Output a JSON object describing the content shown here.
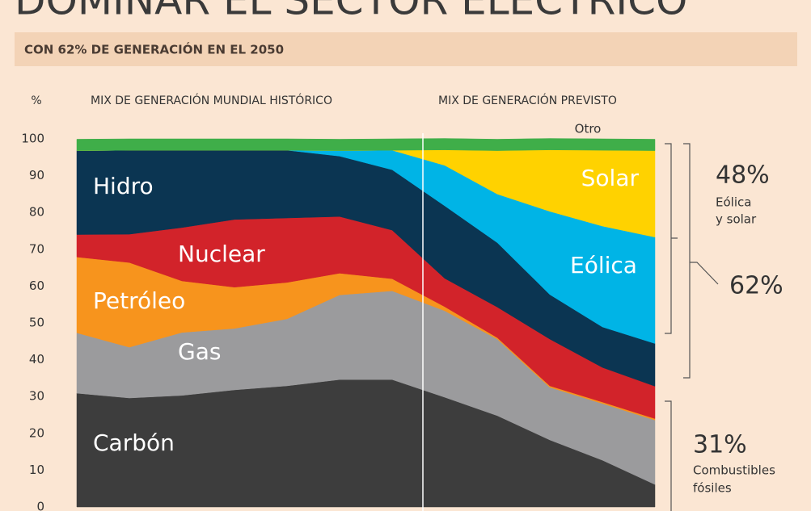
{
  "chart_data": {
    "type": "stacked_area",
    "title": "DOMINAR EL SECTOR ELÉCTRICO",
    "subtitle": "CON 62% DE GENERACIÓN EN EL 2050",
    "y_label": "%",
    "section_labels": [
      "MIX DE GENERACIÓN MUNDIAL HISTÓRICO",
      "MIX DE GENERACIÓN PREVISTO"
    ],
    "categories": [
      null,
      null,
      null,
      null,
      null,
      null,
      null,
      null,
      null,
      null,
      null,
      null
    ],
    "ylim": [
      0,
      100
    ],
    "yticks": [
      0,
      10,
      20,
      30,
      40,
      50,
      60,
      70,
      80,
      90,
      100
    ],
    "series": [
      {
        "name": "Carbón",
        "color": "#3d3d3d",
        "values": [
          30.9,
          29.6,
          30.3,
          31.8,
          32.9,
          34.6,
          34.6,
          29.8,
          24.8,
          18.2,
          12.7,
          6.1
        ]
      },
      {
        "name": "Gas",
        "color": "#9b9b9d",
        "values": [
          16.4,
          13.8,
          17.1,
          16.7,
          18.2,
          23.0,
          24.1,
          23.5,
          20.8,
          14.3,
          15.4,
          17.5
        ]
      },
      {
        "name": "Petróleo",
        "color": "#f7941d",
        "values": [
          20.6,
          23.0,
          14.0,
          11.2,
          9.9,
          5.9,
          3.3,
          1.1,
          0.4,
          0.4,
          0.4,
          0.4
        ]
      },
      {
        "name": "Nuclear",
        "color": "#d2232a",
        "values": [
          6.1,
          7.7,
          14.5,
          18.4,
          17.5,
          15.4,
          13.2,
          7.7,
          8.3,
          12.7,
          9.4,
          8.8
        ]
      },
      {
        "name": "Hidro",
        "color": "#0b3552",
        "values": [
          22.8,
          22.8,
          21.0,
          18.8,
          18.4,
          16.4,
          16.4,
          19.7,
          17.5,
          12.1,
          11.0,
          11.6
        ]
      },
      {
        "name": "Eólica",
        "color": "#00b4e6",
        "values": [
          0,
          0,
          0,
          0,
          0,
          1.5,
          5.3,
          11.0,
          13.2,
          22.6,
          27.4,
          28.9
        ]
      },
      {
        "name": "Solar",
        "color": "#ffd200",
        "values": [
          0,
          0,
          0,
          0,
          0,
          0,
          0,
          4.2,
          11.8,
          16.7,
          20.6,
          23.5
        ]
      },
      {
        "name": "Otro",
        "color": "#3fae49",
        "values": [
          3.1,
          3.1,
          3.1,
          3.1,
          3.1,
          3.1,
          3.1,
          3.1,
          3.1,
          3.1,
          3.1,
          3.1
        ]
      }
    ],
    "annotations": [
      "48%",
      "Eólica",
      "y solar",
      "62%",
      "31%",
      "Combustibles",
      "fósiles"
    ]
  }
}
